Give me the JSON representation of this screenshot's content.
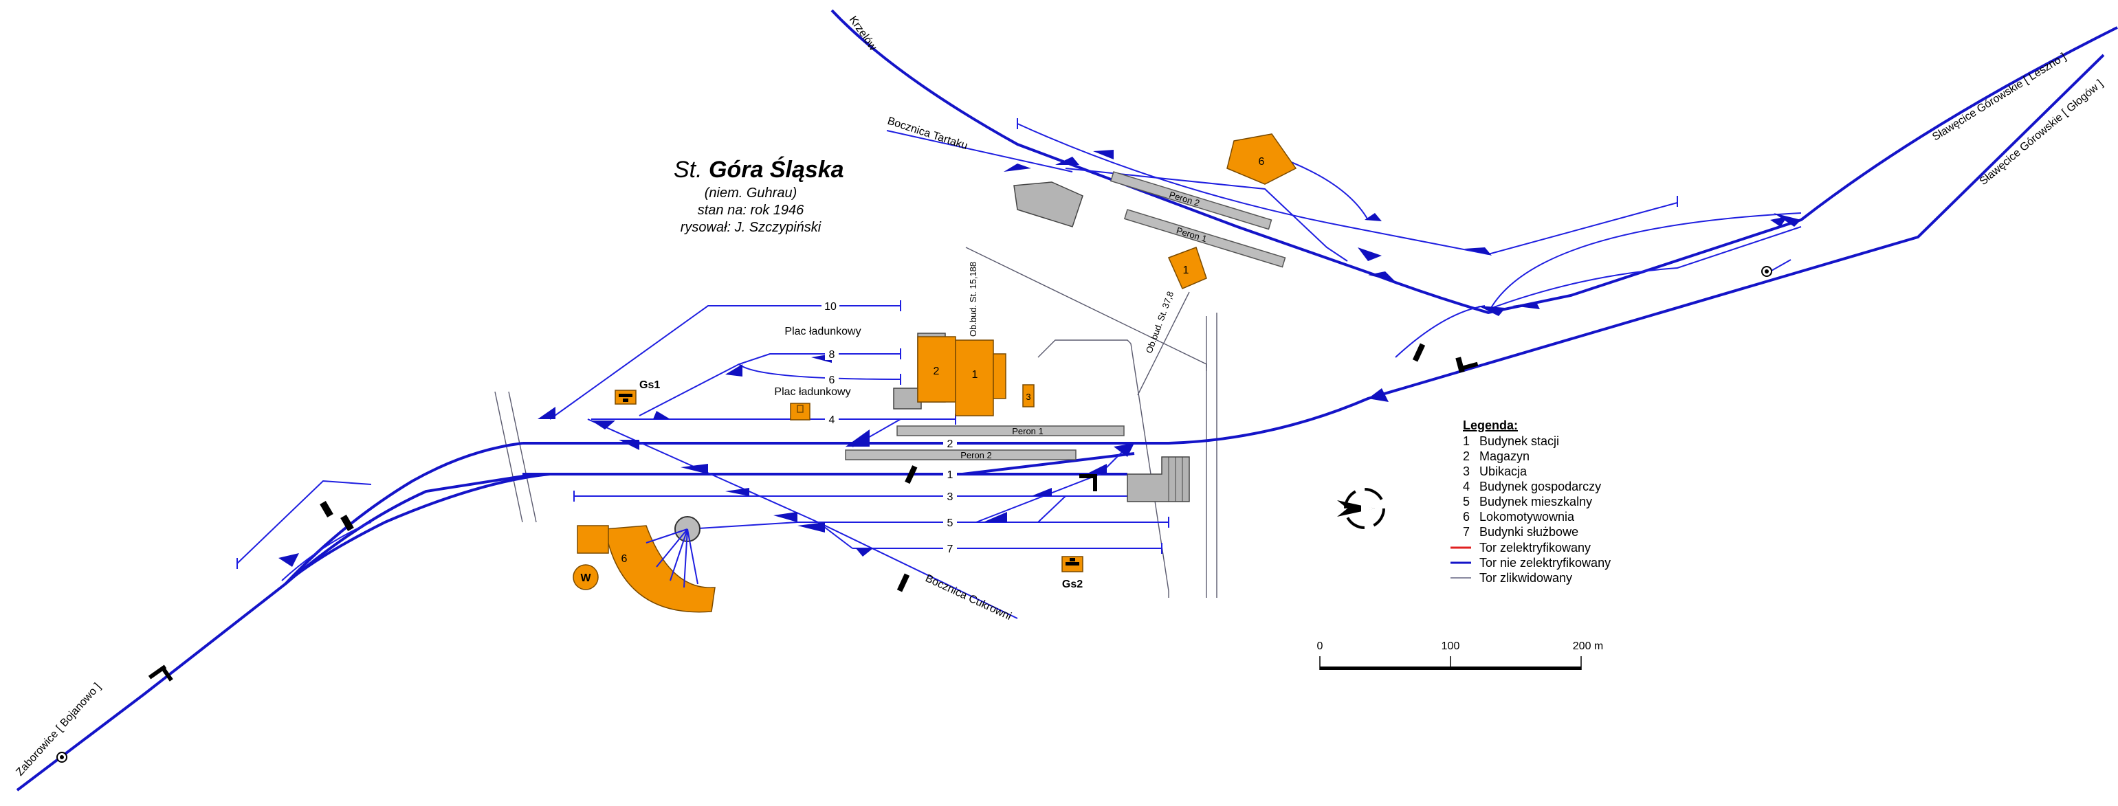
{
  "title": {
    "prefix": "St.",
    "name": "Góra Śląska",
    "lines": [
      "(niem. Guhrau)",
      "stan na: rok 1946",
      "rysował: J. Szczypiński"
    ]
  },
  "directions": {
    "nw": "Krzelów",
    "ne_upper": "Sławęcice Górowskie [ Leszno ]",
    "ne_lower": "Sławęcice Górowskie [ Głogów ]",
    "sw": "Zaborowice [ Bojanowo ]",
    "siding_sawmill": "Bocznica Tartaku",
    "siding_sugar": "Bocznica Cukrowni"
  },
  "tracks": [
    "10",
    "8",
    "6",
    "4",
    "2",
    "1",
    "3",
    "5",
    "7"
  ],
  "platforms": {
    "south_1": "Peron 1",
    "south_2": "Peron 2",
    "north_1": "Peron 1",
    "north_2": "Peron 2"
  },
  "loading": {
    "upper": "Plac ładunkowy",
    "lower": "Plac ładunkowy"
  },
  "signal_boxes": {
    "gs1": "Gs1",
    "gs2": "Gs2"
  },
  "buildings": {
    "station": "1",
    "warehouse": "2",
    "toilet": "3",
    "engine_shed": "6",
    "north_house": "1",
    "north_shed": "6",
    "water_tower": "W"
  },
  "road_labels": {
    "road_1": "Ob.bud. St. 15,188",
    "road_2": "Ob.bud. St. 37,8"
  },
  "legend": {
    "heading": "Legenda:",
    "items": [
      {
        "num": "1",
        "text": "Budynek stacji"
      },
      {
        "num": "2",
        "text": "Magazyn"
      },
      {
        "num": "3",
        "text": "Ubikacja"
      },
      {
        "num": "4",
        "text": "Budynek gospodarczy"
      },
      {
        "num": "5",
        "text": "Budynek mieszkalny"
      },
      {
        "num": "6",
        "text": "Lokomotywownia"
      },
      {
        "num": "7",
        "text": "Budynki służbowe"
      }
    ],
    "lines": [
      {
        "text": "Tor zelektryfikowany",
        "color": "#e02020"
      },
      {
        "text": "Tor nie zelektryfikowany",
        "color": "#1414c8"
      },
      {
        "text": "Tor zlikwidowany",
        "color": "#8a8aa0"
      }
    ]
  },
  "scale": {
    "ticks": [
      "0",
      "100",
      "200 m"
    ]
  },
  "colors": {
    "track": "#1414c8",
    "building": "#f39200",
    "platform": "#bdbdbd"
  }
}
